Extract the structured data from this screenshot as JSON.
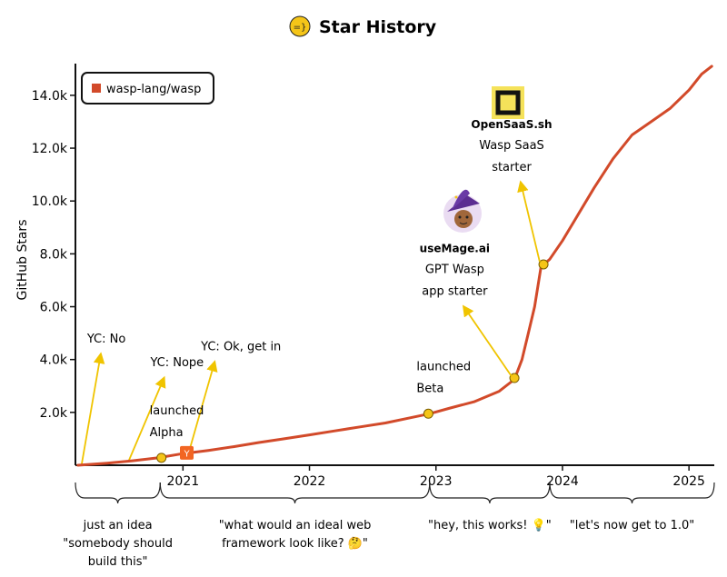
{
  "chart_data": {
    "type": "line",
    "title": "Star History",
    "ylabel": "GitHub Stars",
    "xlabel": "",
    "ylim": [
      0,
      15200
    ],
    "yticks": [
      2000,
      4000,
      6000,
      8000,
      10000,
      12000,
      14000
    ],
    "ytick_labels": [
      "2.0k",
      "4.0k",
      "6.0k",
      "8.0k",
      "10.0k",
      "12.0k",
      "14.0k"
    ],
    "xlim": [
      2020.15,
      2025.2
    ],
    "xticks": [
      2021,
      2022,
      2023,
      2024,
      2025
    ],
    "xtick_labels": [
      "2021",
      "2022",
      "2023",
      "2024",
      "2025"
    ],
    "grid": false,
    "legend": "top-left",
    "series": [
      {
        "name": "wasp-lang/wasp",
        "color": "#d24a2a",
        "x": [
          2020.17,
          2020.4,
          2020.6,
          2020.8,
          2021.0,
          2021.2,
          2021.4,
          2021.6,
          2021.8,
          2022.0,
          2022.2,
          2022.4,
          2022.6,
          2022.8,
          2022.95,
          2023.1,
          2023.3,
          2023.5,
          2023.62,
          2023.68,
          2023.73,
          2023.78,
          2023.83,
          2023.9,
          2024.0,
          2024.1,
          2024.25,
          2024.4,
          2024.55,
          2024.7,
          2024.85,
          2025.0,
          2025.1,
          2025.18
        ],
        "y": [
          0,
          80,
          170,
          280,
          440,
          560,
          700,
          860,
          1000,
          1150,
          1300,
          1450,
          1600,
          1800,
          1950,
          2150,
          2400,
          2800,
          3250,
          4000,
          5000,
          6000,
          7500,
          7800,
          8500,
          9300,
          10500,
          11600,
          12500,
          13000,
          13500,
          14200,
          14800,
          15100
        ]
      }
    ],
    "milestones": [
      {
        "x": 2020.83,
        "y": 280,
        "label_lines": [
          "launched",
          "Alpha"
        ]
      },
      {
        "x": 2022.94,
        "y": 1950,
        "label_lines": [
          "launched",
          "Beta"
        ]
      },
      {
        "x": 2023.62,
        "y": 3300
      },
      {
        "x": 2023.85,
        "y": 7600
      }
    ],
    "yc_marker": {
      "x": 2021.03,
      "y": 450,
      "label": "Y"
    },
    "callouts": [
      {
        "text": "YC: No",
        "from": [
          2020.2,
          50
        ],
        "to": [
          2020.35,
          4200
        ]
      },
      {
        "text": "YC: Nope",
        "from": [
          2020.57,
          150
        ],
        "to": [
          2020.85,
          3300
        ]
      },
      {
        "text": "YC: Ok, get in",
        "from": [
          2021.05,
          550
        ],
        "to": [
          2021.25,
          3900
        ]
      }
    ],
    "promos": [
      {
        "brand": "useMage.ai",
        "lines": [
          "GPT Wasp",
          "app starter"
        ],
        "arrow_from": [
          2023.6,
          3350
        ],
        "arrow_to": [
          2023.22,
          6000
        ]
      },
      {
        "brand": "OpenSaaS.sh",
        "lines": [
          "Wasp SaaS",
          "starter"
        ],
        "arrow_from": [
          2023.82,
          7700
        ],
        "arrow_to": [
          2023.67,
          10700
        ]
      }
    ],
    "phases": [
      {
        "x0": 2020.15,
        "x1": 2020.82,
        "lines": [
          "just an idea",
          "\"somebody should",
          "build this\""
        ]
      },
      {
        "x0": 2020.82,
        "x1": 2022.95,
        "lines": [
          "\"what would an ideal web",
          "framework look like? 🤔\""
        ]
      },
      {
        "x0": 2022.95,
        "x1": 2023.9,
        "lines": [
          "\"hey, this works! 💡\""
        ]
      },
      {
        "x0": 2023.9,
        "x1": 2025.2,
        "lines": [
          "\"let's now get to 1.0\""
        ]
      }
    ]
  }
}
